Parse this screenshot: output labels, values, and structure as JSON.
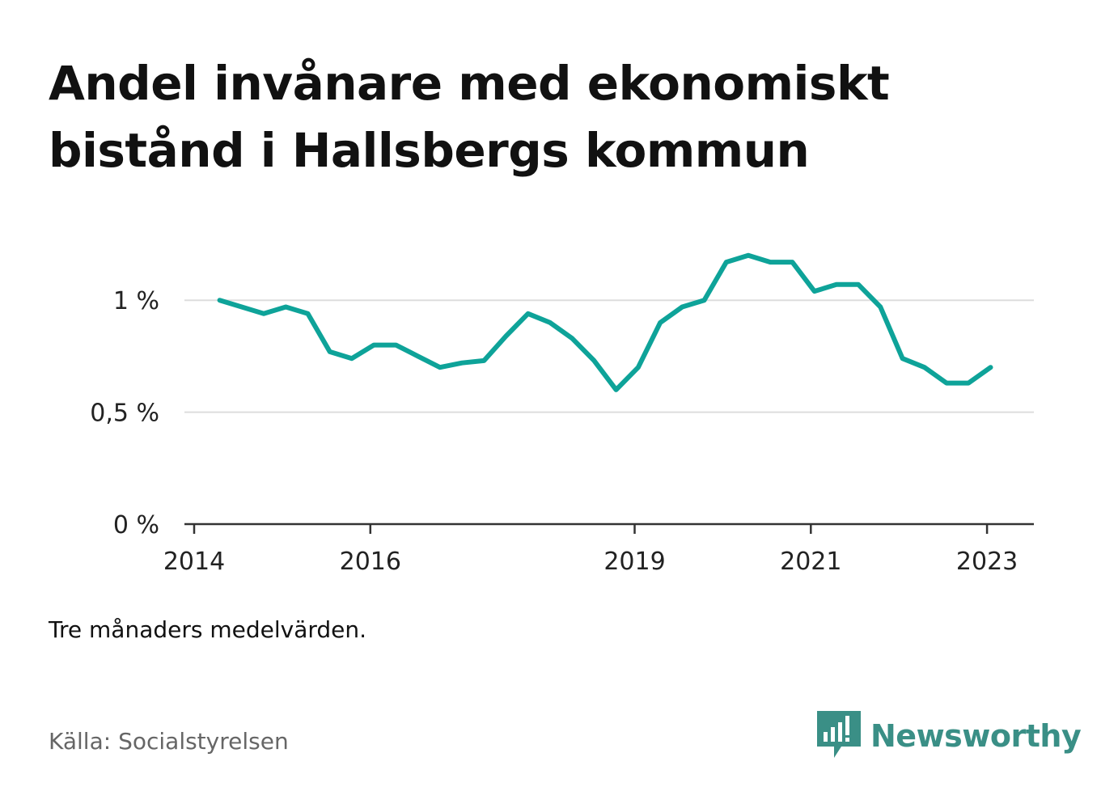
{
  "title": "Andel invånare med ekonomiskt bistånd i Hallsbergs kommun",
  "note": "Tre månaders medelvärden.",
  "source": "Källa: Socialstyrelsen",
  "brand": "Newsworthy",
  "colors": {
    "line": "#0ea399",
    "grid": "#dddddd",
    "axis": "#333333",
    "brand": "#3a8f86"
  },
  "chart_data": {
    "type": "line",
    "title": "Andel invånare med ekonomiskt bistånd i Hallsbergs kommun",
    "xlabel": "",
    "ylabel": "",
    "x_ticks": [
      {
        "label": "2014",
        "value": 2014.0
      },
      {
        "label": "2016",
        "value": 2016.0
      },
      {
        "label": "2019",
        "value": 2019.0
      },
      {
        "label": "2021",
        "value": 2021.0
      },
      {
        "label": "2023",
        "value": 2023.0
      }
    ],
    "y_ticks": [
      {
        "label": "0 %",
        "value": 0
      },
      {
        "label": "0,5 %",
        "value": 0.5
      },
      {
        "label": "1 %",
        "value": 1.0
      }
    ],
    "xlim": [
      2014.0,
      2023.54
    ],
    "ylim": [
      0,
      1.25
    ],
    "grid": true,
    "series": [
      {
        "values": [
          [
            2014.29,
            1.0
          ],
          [
            2014.54,
            0.97
          ],
          [
            2014.79,
            0.94
          ],
          [
            2015.04,
            0.97
          ],
          [
            2015.29,
            0.94
          ],
          [
            2015.54,
            0.77
          ],
          [
            2015.79,
            0.74
          ],
          [
            2016.04,
            0.8
          ],
          [
            2016.29,
            0.8
          ],
          [
            2016.54,
            0.75
          ],
          [
            2016.79,
            0.7
          ],
          [
            2017.04,
            0.72
          ],
          [
            2017.29,
            0.73
          ],
          [
            2017.54,
            0.84
          ],
          [
            2017.79,
            0.94
          ],
          [
            2018.04,
            0.9
          ],
          [
            2018.29,
            0.83
          ],
          [
            2018.54,
            0.73
          ],
          [
            2018.79,
            0.6
          ],
          [
            2019.04,
            0.7
          ],
          [
            2019.29,
            0.9
          ],
          [
            2019.54,
            0.97
          ],
          [
            2019.79,
            1.0
          ],
          [
            2020.04,
            1.17
          ],
          [
            2020.29,
            1.2
          ],
          [
            2020.54,
            1.17
          ],
          [
            2020.79,
            1.17
          ],
          [
            2021.04,
            1.04
          ],
          [
            2021.29,
            1.07
          ],
          [
            2021.54,
            1.07
          ],
          [
            2021.79,
            0.97
          ],
          [
            2022.04,
            0.74
          ],
          [
            2022.29,
            0.7
          ],
          [
            2022.54,
            0.63
          ],
          [
            2022.79,
            0.63
          ],
          [
            2023.04,
            0.7
          ]
        ]
      }
    ]
  }
}
